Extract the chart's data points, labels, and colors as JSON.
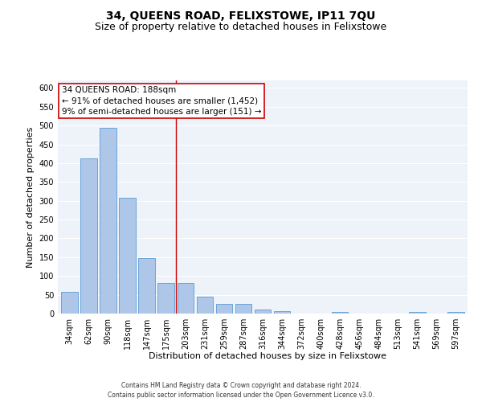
{
  "title": "34, QUEENS ROAD, FELIXSTOWE, IP11 7QU",
  "subtitle": "Size of property relative to detached houses in Felixstowe",
  "xlabel": "Distribution of detached houses by size in Felixstowe",
  "ylabel": "Number of detached properties",
  "categories": [
    "34sqm",
    "62sqm",
    "90sqm",
    "118sqm",
    "147sqm",
    "175sqm",
    "203sqm",
    "231sqm",
    "259sqm",
    "287sqm",
    "316sqm",
    "344sqm",
    "372sqm",
    "400sqm",
    "428sqm",
    "456sqm",
    "484sqm",
    "513sqm",
    "541sqm",
    "569sqm",
    "597sqm"
  ],
  "values": [
    57,
    412,
    494,
    307,
    148,
    82,
    82,
    44,
    25,
    25,
    10,
    7,
    0,
    0,
    5,
    0,
    0,
    0,
    5,
    0,
    5
  ],
  "bar_color": "#aec6e8",
  "bar_edge_color": "#5b9bd5",
  "vline_x": 5.5,
  "vline_color": "#cc0000",
  "annotation_line1": "34 QUEENS ROAD: 188sqm",
  "annotation_line2": "← 91% of detached houses are smaller (1,452)",
  "annotation_line3": "9% of semi-detached houses are larger (151) →",
  "annotation_box_color": "#ffffff",
  "annotation_box_edge": "#cc0000",
  "ylim": [
    0,
    620
  ],
  "yticks": [
    0,
    50,
    100,
    150,
    200,
    250,
    300,
    350,
    400,
    450,
    500,
    550,
    600
  ],
  "footer_line1": "Contains HM Land Registry data © Crown copyright and database right 2024.",
  "footer_line2": "Contains public sector information licensed under the Open Government Licence v3.0.",
  "bg_color": "#eef2f9",
  "grid_color": "#ffffff",
  "title_fontsize": 10,
  "subtitle_fontsize": 9,
  "tick_fontsize": 7,
  "ylabel_fontsize": 8,
  "xlabel_fontsize": 8,
  "annotation_fontsize": 7.5,
  "footer_fontsize": 5.5
}
